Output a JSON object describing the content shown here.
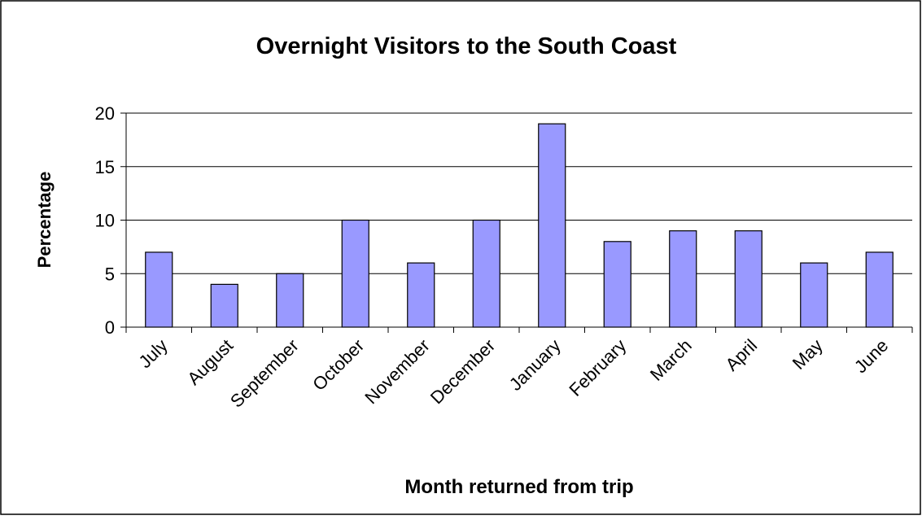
{
  "chart_data": {
    "type": "bar",
    "title": "Overnight Visitors to the South Coast",
    "x_label": "Month returned from trip",
    "y_label": "Percentage",
    "categories": [
      "July",
      "August",
      "September",
      "October",
      "November",
      "December",
      "January",
      "February",
      "March",
      "April",
      "May",
      "June"
    ],
    "values": [
      7,
      4,
      5,
      10,
      6,
      10,
      19,
      8,
      9,
      9,
      6,
      7
    ],
    "color": "#9999ff",
    "ylim": [
      0,
      20
    ],
    "yticks": [
      0,
      5,
      10,
      15,
      20
    ],
    "grid": true
  }
}
